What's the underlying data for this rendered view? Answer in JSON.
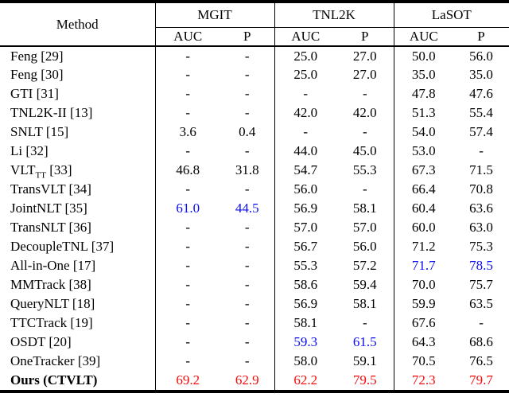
{
  "table": {
    "method_header": "Method",
    "groups": [
      {
        "name": "MGIT",
        "columns": [
          "AUC",
          "P"
        ]
      },
      {
        "name": "TNL2K",
        "columns": [
          "AUC",
          "P"
        ]
      },
      {
        "name": "LaSOT",
        "columns": [
          "AUC",
          "P"
        ]
      }
    ],
    "colors": {
      "default_text": "#000000",
      "second_best": "#0b0bf4",
      "best": "#f40b0b"
    },
    "rows": [
      {
        "method": "Feng [29]",
        "sub": "",
        "tail": "",
        "bold": false,
        "values": [
          "-",
          "-",
          "25.0",
          "27.0",
          "50.0",
          "56.0"
        ],
        "value_colors": [
          "black",
          "black",
          "black",
          "black",
          "black",
          "black"
        ]
      },
      {
        "method": "Feng [30]",
        "sub": "",
        "tail": "",
        "bold": false,
        "values": [
          "-",
          "-",
          "25.0",
          "27.0",
          "35.0",
          "35.0"
        ],
        "value_colors": [
          "black",
          "black",
          "black",
          "black",
          "black",
          "black"
        ]
      },
      {
        "method": "GTI [31]",
        "sub": "",
        "tail": "",
        "bold": false,
        "values": [
          "-",
          "-",
          "-",
          "-",
          "47.8",
          "47.6"
        ],
        "value_colors": [
          "black",
          "black",
          "black",
          "black",
          "black",
          "black"
        ]
      },
      {
        "method": "TNL2K-II [13]",
        "sub": "",
        "tail": "",
        "bold": false,
        "values": [
          "-",
          "-",
          "42.0",
          "42.0",
          "51.3",
          "55.4"
        ],
        "value_colors": [
          "black",
          "black",
          "black",
          "black",
          "black",
          "black"
        ]
      },
      {
        "method": "SNLT [15]",
        "sub": "",
        "tail": "",
        "bold": false,
        "values": [
          "3.6",
          "0.4",
          "-",
          "-",
          "54.0",
          "57.4"
        ],
        "value_colors": [
          "black",
          "black",
          "black",
          "black",
          "black",
          "black"
        ]
      },
      {
        "method": "Li [32]",
        "sub": "",
        "tail": "",
        "bold": false,
        "values": [
          "-",
          "-",
          "44.0",
          "45.0",
          "53.0",
          "-"
        ],
        "value_colors": [
          "black",
          "black",
          "black",
          "black",
          "black",
          "black"
        ]
      },
      {
        "method": "VLT",
        "sub": "TT",
        "tail": " [33]",
        "bold": false,
        "values": [
          "46.8",
          "31.8",
          "54.7",
          "55.3",
          "67.3",
          "71.5"
        ],
        "value_colors": [
          "black",
          "black",
          "black",
          "black",
          "black",
          "black"
        ]
      },
      {
        "method": "TransVLT [34]",
        "sub": "",
        "tail": "",
        "bold": false,
        "values": [
          "-",
          "-",
          "56.0",
          "-",
          "66.4",
          "70.8"
        ],
        "value_colors": [
          "black",
          "black",
          "black",
          "black",
          "black",
          "black"
        ]
      },
      {
        "method": "JointNLT [35]",
        "sub": "",
        "tail": "",
        "bold": false,
        "values": [
          "61.0",
          "44.5",
          "56.9",
          "58.1",
          "60.4",
          "63.6"
        ],
        "value_colors": [
          "blue",
          "blue",
          "black",
          "black",
          "black",
          "black"
        ]
      },
      {
        "method": "TransNLT [36]",
        "sub": "",
        "tail": "",
        "bold": false,
        "values": [
          "-",
          "-",
          "57.0",
          "57.0",
          "60.0",
          "63.0"
        ],
        "value_colors": [
          "black",
          "black",
          "black",
          "black",
          "black",
          "black"
        ]
      },
      {
        "method": "DecoupleTNL [37]",
        "sub": "",
        "tail": "",
        "bold": false,
        "values": [
          "-",
          "-",
          "56.7",
          "56.0",
          "71.2",
          "75.3"
        ],
        "value_colors": [
          "black",
          "black",
          "black",
          "black",
          "black",
          "black"
        ]
      },
      {
        "method": "All-in-One [17]",
        "sub": "",
        "tail": "",
        "bold": false,
        "values": [
          "-",
          "-",
          "55.3",
          "57.2",
          "71.7",
          "78.5"
        ],
        "value_colors": [
          "black",
          "black",
          "black",
          "black",
          "blue",
          "blue"
        ]
      },
      {
        "method": "MMTrack [38]",
        "sub": "",
        "tail": "",
        "bold": false,
        "values": [
          "-",
          "-",
          "58.6",
          "59.4",
          "70.0",
          "75.7"
        ],
        "value_colors": [
          "black",
          "black",
          "black",
          "black",
          "black",
          "black"
        ]
      },
      {
        "method": "QueryNLT [18]",
        "sub": "",
        "tail": "",
        "bold": false,
        "values": [
          "-",
          "-",
          "56.9",
          "58.1",
          "59.9",
          "63.5"
        ],
        "value_colors": [
          "black",
          "black",
          "black",
          "black",
          "black",
          "black"
        ]
      },
      {
        "method": "TTCTrack [19]",
        "sub": "",
        "tail": "",
        "bold": false,
        "values": [
          "-",
          "-",
          "58.1",
          "-",
          "67.6",
          "-"
        ],
        "value_colors": [
          "black",
          "black",
          "black",
          "black",
          "black",
          "black"
        ]
      },
      {
        "method": "OSDT [20]",
        "sub": "",
        "tail": "",
        "bold": false,
        "values": [
          "-",
          "-",
          "59.3",
          "61.5",
          "64.3",
          "68.6"
        ],
        "value_colors": [
          "black",
          "black",
          "blue",
          "blue",
          "black",
          "black"
        ]
      },
      {
        "method": "OneTracker [39]",
        "sub": "",
        "tail": "",
        "bold": false,
        "values": [
          "-",
          "-",
          "58.0",
          "59.1",
          "70.5",
          "76.5"
        ],
        "value_colors": [
          "black",
          "black",
          "black",
          "black",
          "black",
          "black"
        ]
      },
      {
        "method": "Ours (CTVLT)",
        "sub": "",
        "tail": "",
        "bold": true,
        "values": [
          "69.2",
          "62.9",
          "62.2",
          "79.5",
          "72.3",
          "79.7"
        ],
        "value_colors": [
          "red",
          "red",
          "red",
          "red",
          "red",
          "red"
        ]
      }
    ]
  }
}
